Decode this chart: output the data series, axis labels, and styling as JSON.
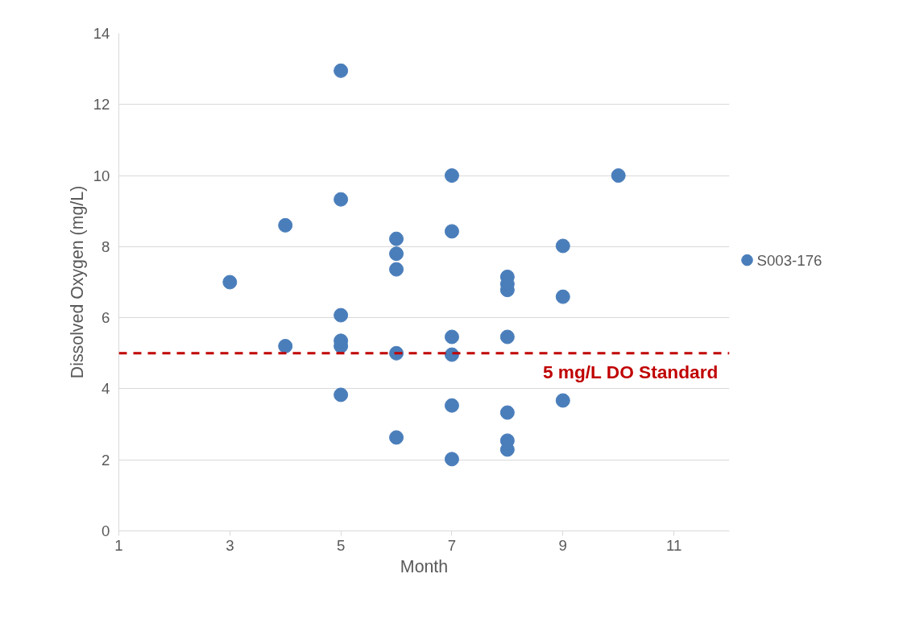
{
  "chart_data": {
    "type": "scatter",
    "xlabel": "Month",
    "ylabel": "Dissolved Oxygen (mg/L)",
    "xlim": [
      1,
      12
    ],
    "xticks": [
      1,
      3,
      5,
      7,
      9,
      11
    ],
    "ylim": [
      0,
      14
    ],
    "yticks": [
      0,
      2,
      4,
      6,
      8,
      10,
      12,
      14
    ],
    "grid": "y",
    "legend": "right",
    "marker": "circle",
    "series": [
      {
        "name": "S003-176",
        "color": "#4a7ebb",
        "x": [
          3,
          4,
          4,
          5,
          5,
          5,
          5,
          5,
          5,
          6,
          6,
          6,
          6,
          6,
          7,
          7,
          7,
          7,
          7,
          7,
          8,
          8,
          8,
          8,
          8,
          8,
          8,
          9,
          9,
          9,
          10
        ],
        "values": [
          7.0,
          8.6,
          5.2,
          12.95,
          9.33,
          6.07,
          5.35,
          5.2,
          3.83,
          8.22,
          7.8,
          7.36,
          5.0,
          2.63,
          10.0,
          8.43,
          5.46,
          4.96,
          3.53,
          2.02,
          7.15,
          6.95,
          6.78,
          5.46,
          3.33,
          2.54,
          2.29,
          8.02,
          6.59,
          3.67,
          10.0
        ]
      }
    ],
    "ref_lines": [
      {
        "axis": "y",
        "value": 5,
        "label": "5 mg/L DO Standard",
        "color": "#c00000",
        "line_style": "dashed"
      }
    ]
  }
}
